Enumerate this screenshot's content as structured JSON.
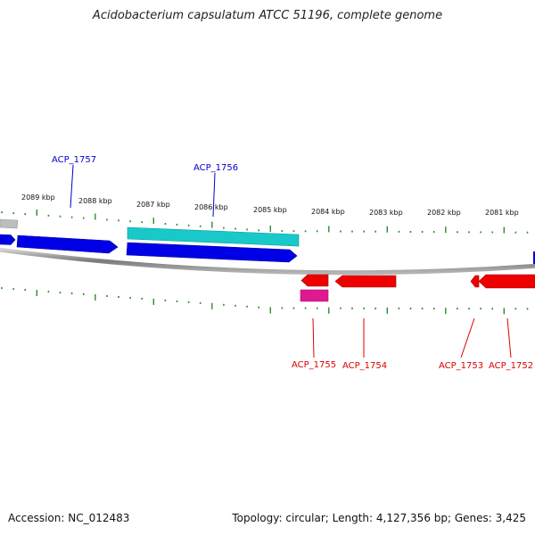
{
  "title": "Acidobacterium capsulatum ATCC 51196, complete genome",
  "footer": {
    "accession": "Accession: NC_012483",
    "summary": "Topology: circular; Length: 4,127,356 bp; Genes: 3,425"
  },
  "scale": {
    "unit": "kbp",
    "labeled_ticks": [
      {
        "kbp": 2089,
        "label": "2089 kbp"
      },
      {
        "kbp": 2088,
        "label": "2088 kbp"
      },
      {
        "kbp": 2087,
        "label": "2087 kbp"
      },
      {
        "kbp": 2086,
        "label": "2086 kbp"
      },
      {
        "kbp": 2085,
        "label": "2085 kbp"
      },
      {
        "kbp": 2084,
        "label": "2084 kbp"
      },
      {
        "kbp": 2083,
        "label": "2083 kbp"
      },
      {
        "kbp": 2082,
        "label": "2082 kbp"
      },
      {
        "kbp": 2081,
        "label": "2081 kbp"
      }
    ]
  },
  "colors": {
    "plus_strand": "#0000e6",
    "minus_strand": "#ee0000",
    "plus_feature": "#19c9c9",
    "minus_feature": "#e0198f",
    "backbone": "#888888",
    "ticks": "#2f8a2f",
    "grey_gene": "#bbbbbb"
  },
  "genes": [
    {
      "name": "ACP_1757",
      "strand": "+",
      "label_color": "#0000cc"
    },
    {
      "name": "ACP_1756",
      "strand": "+",
      "label_color": "#0000cc"
    },
    {
      "name": "ACP_1755",
      "strand": "-",
      "label_color": "#dd0000"
    },
    {
      "name": "ACP_1754",
      "strand": "-",
      "label_color": "#dd0000"
    },
    {
      "name": "ACP_1753",
      "strand": "-",
      "label_color": "#dd0000"
    },
    {
      "name": "ACP_1752",
      "strand": "-",
      "label_color": "#dd0000"
    }
  ]
}
